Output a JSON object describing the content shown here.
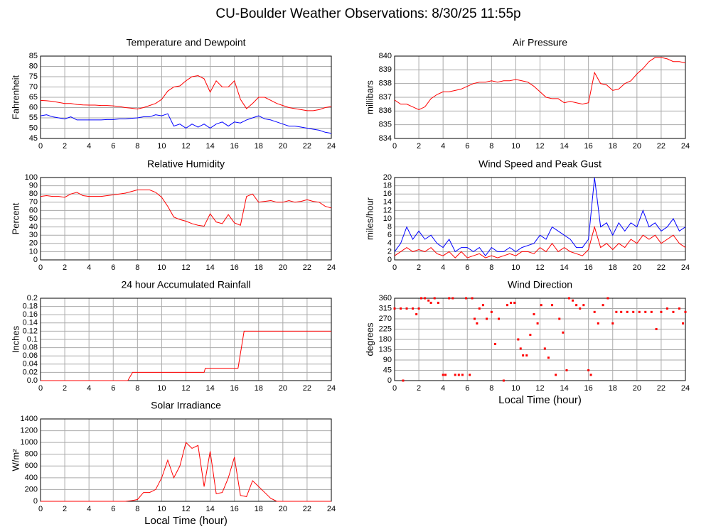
{
  "title": "CU-Boulder Weather Observations: 8/30/25 11:55p",
  "chart_data": [
    {
      "type": "line",
      "title": "Temperature and Dewpoint",
      "ylabel": "Fahrenheit",
      "x": [
        0,
        0.5,
        1,
        1.5,
        2,
        2.5,
        3,
        3.5,
        4,
        4.5,
        5,
        5.5,
        6,
        6.5,
        7,
        7.5,
        8,
        8.5,
        9,
        9.5,
        10,
        10.5,
        11,
        11.5,
        12,
        12.5,
        13,
        13.5,
        14,
        14.5,
        15,
        15.5,
        16,
        16.5,
        17,
        17.5,
        18,
        18.5,
        19,
        19.5,
        20,
        20.5,
        21,
        21.5,
        22,
        22.5,
        23,
        23.5,
        24
      ],
      "series": [
        {
          "color": "#ff0000",
          "values": [
            63.5,
            63.3,
            63,
            62.5,
            62,
            62,
            61.5,
            61.3,
            61.2,
            61.2,
            61,
            61,
            60.8,
            60.5,
            60,
            59.7,
            59.3,
            60,
            61,
            62,
            64,
            68,
            70,
            70.5,
            73,
            75,
            75.5,
            74,
            67.5,
            73,
            70,
            70,
            73,
            64,
            59.5,
            62,
            65,
            65,
            63.5,
            62,
            61,
            60,
            59.5,
            59,
            58.5,
            58.5,
            59,
            60,
            60.5
          ]
        },
        {
          "color": "#0000ff",
          "values": [
            56,
            56.5,
            55.5,
            55,
            54.5,
            55.5,
            54,
            54,
            54,
            54,
            54,
            54.2,
            54.2,
            54.5,
            54.5,
            54.8,
            55,
            55.5,
            55.5,
            56.5,
            56,
            57,
            51,
            52,
            50,
            52,
            50.5,
            52,
            50,
            52,
            53,
            51,
            53,
            52.5,
            54,
            55,
            56,
            54.5,
            54,
            53,
            52,
            51,
            51,
            50.5,
            50,
            49.5,
            49,
            48,
            47.5
          ]
        }
      ],
      "xlim": [
        0,
        24
      ],
      "ylim": [
        45,
        85
      ],
      "xticks": [
        0,
        2,
        4,
        6,
        8,
        10,
        12,
        14,
        16,
        18,
        20,
        22,
        24
      ],
      "yticks": [
        45,
        50,
        55,
        60,
        65,
        70,
        75,
        80,
        85
      ]
    },
    {
      "type": "line",
      "title": "Air Pressure",
      "ylabel": "millibars",
      "x": [
        0,
        0.5,
        1,
        1.5,
        2,
        2.5,
        3,
        3.5,
        4,
        4.5,
        5,
        5.5,
        6,
        6.5,
        7,
        7.5,
        8,
        8.5,
        9,
        9.5,
        10,
        10.5,
        11,
        11.5,
        12,
        12.5,
        13,
        13.5,
        14,
        14.5,
        15,
        15.5,
        16,
        16.5,
        17,
        17.5,
        18,
        18.5,
        19,
        19.5,
        20,
        20.5,
        21,
        21.5,
        22,
        22.5,
        23,
        23.5,
        24
      ],
      "series": [
        {
          "color": "#ff0000",
          "values": [
            836.8,
            836.5,
            836.5,
            836.3,
            836.1,
            836.3,
            836.9,
            837.2,
            837.4,
            837.4,
            837.5,
            837.6,
            837.8,
            838,
            838.1,
            838.1,
            838.2,
            838.1,
            838.2,
            838.2,
            838.3,
            838.2,
            838.1,
            837.8,
            837.4,
            837,
            836.9,
            836.9,
            836.6,
            836.7,
            836.6,
            836.5,
            836.6,
            838.8,
            838,
            837.9,
            837.5,
            837.6,
            838,
            838.2,
            838.7,
            839.1,
            839.6,
            839.9,
            839.9,
            839.8,
            839.6,
            839.6,
            839.5
          ]
        }
      ],
      "xlim": [
        0,
        24
      ],
      "ylim": [
        834,
        840
      ],
      "xticks": [
        0,
        2,
        4,
        6,
        8,
        10,
        12,
        14,
        16,
        18,
        20,
        22,
        24
      ],
      "yticks": [
        834,
        835,
        836,
        837,
        838,
        839,
        840
      ]
    },
    {
      "type": "line",
      "title": "Relative Humidity",
      "ylabel": "Percent",
      "x": [
        0,
        0.5,
        1,
        1.5,
        2,
        2.5,
        3,
        3.5,
        4,
        4.5,
        5,
        5.5,
        6,
        6.5,
        7,
        7.5,
        8,
        8.5,
        9,
        9.5,
        10,
        10.5,
        11,
        11.5,
        12,
        12.5,
        13,
        13.5,
        14,
        14.5,
        15,
        15.5,
        16,
        16.5,
        17,
        17.5,
        18,
        18.5,
        19,
        19.5,
        20,
        20.5,
        21,
        21.5,
        22,
        22.5,
        23,
        23.5,
        24
      ],
      "series": [
        {
          "color": "#ff0000",
          "values": [
            77,
            78,
            77,
            77,
            76,
            80,
            82,
            78,
            77,
            77,
            77,
            78,
            79,
            80,
            81,
            83,
            85,
            85,
            85,
            82,
            76,
            65,
            52,
            49,
            47,
            44,
            42,
            41,
            56,
            46,
            44,
            55,
            45,
            42,
            77,
            80,
            70,
            71,
            72,
            70,
            70,
            72,
            70,
            71,
            73,
            71,
            70,
            65,
            63
          ]
        }
      ],
      "xlim": [
        0,
        24
      ],
      "ylim": [
        0,
        100
      ],
      "xticks": [
        0,
        2,
        4,
        6,
        8,
        10,
        12,
        14,
        16,
        18,
        20,
        22,
        24
      ],
      "yticks": [
        0,
        10,
        20,
        30,
        40,
        50,
        60,
        70,
        80,
        90,
        100
      ]
    },
    {
      "type": "line",
      "title": "Wind Speed and Peak Gust",
      "ylabel": "miles/hour",
      "x": [
        0,
        0.5,
        1,
        1.5,
        2,
        2.5,
        3,
        3.5,
        4,
        4.5,
        5,
        5.5,
        6,
        6.5,
        7,
        7.5,
        8,
        8.5,
        9,
        9.5,
        10,
        10.5,
        11,
        11.5,
        12,
        12.5,
        13,
        13.5,
        14,
        14.5,
        15,
        15.5,
        16,
        16.5,
        17,
        17.5,
        18,
        18.5,
        19,
        19.5,
        20,
        20.5,
        21,
        21.5,
        22,
        22.5,
        23,
        23.5,
        24
      ],
      "series": [
        {
          "color": "#0000ff",
          "values": [
            2,
            4,
            8,
            5,
            7,
            5,
            6,
            4,
            3,
            5,
            2,
            3,
            3,
            2,
            3,
            1,
            3,
            2,
            2,
            3,
            2,
            3,
            3.5,
            4,
            6,
            5,
            8,
            7,
            6,
            5,
            3,
            3,
            5,
            20,
            8,
            9,
            6,
            9,
            7,
            9,
            8,
            12,
            8,
            9,
            7,
            8,
            10,
            7,
            8
          ]
        },
        {
          "color": "#ff0000",
          "values": [
            1,
            2,
            3,
            2,
            2.5,
            2,
            3,
            1.5,
            1,
            2,
            0.5,
            2,
            0.5,
            1,
            1.5,
            0.5,
            1,
            0.5,
            1,
            1.5,
            1,
            2,
            2,
            1.5,
            3,
            2,
            4,
            2,
            3,
            2,
            1.5,
            1,
            2.5,
            8,
            3,
            4,
            2.5,
            4,
            3,
            5,
            4,
            6,
            5,
            6,
            4,
            5,
            6,
            4,
            3
          ]
        }
      ],
      "xlim": [
        0,
        24
      ],
      "ylim": [
        0,
        20
      ],
      "xticks": [
        0,
        2,
        4,
        6,
        8,
        10,
        12,
        14,
        16,
        18,
        20,
        22,
        24
      ],
      "yticks": [
        0,
        2,
        4,
        6,
        8,
        10,
        12,
        14,
        16,
        18,
        20
      ]
    },
    {
      "type": "line",
      "title": "24 hour Accumulated Rainfall",
      "ylabel": "Inches",
      "x": [
        0,
        7.2,
        7.4,
        7.6,
        13.5,
        13.6,
        16.3,
        16.8,
        24
      ],
      "series": [
        {
          "color": "#ff0000",
          "values": [
            0,
            0,
            0.01,
            0.02,
            0.02,
            0.03,
            0.03,
            0.12,
            0.12
          ]
        }
      ],
      "xlim": [
        0,
        24
      ],
      "ylim": [
        0,
        0.2
      ],
      "xticks": [
        0,
        2,
        4,
        6,
        8,
        10,
        12,
        14,
        16,
        18,
        20,
        22,
        24
      ],
      "yticks": [
        {
          "value": 0,
          "label": "0.0"
        },
        0.02,
        0.04,
        0.06,
        0.08,
        0.1,
        0.12,
        0.14,
        0.16,
        0.18,
        0.2
      ]
    },
    {
      "type": "scatter",
      "title": "Wind Direction",
      "ylabel": "degrees",
      "xlabel": "Local Time (hour)",
      "x": [
        0,
        0.5,
        0.7,
        1,
        1.5,
        1.8,
        2,
        2.2,
        2.5,
        2.8,
        3,
        3.3,
        3.6,
        4,
        4.2,
        4.5,
        4.8,
        5,
        5.3,
        5.6,
        5.9,
        6.2,
        6.4,
        6.6,
        6.8,
        7,
        7.3,
        7.6,
        8,
        8.3,
        8.6,
        9,
        9.3,
        9.6,
        9.9,
        10.2,
        10.4,
        10.6,
        10.9,
        11.2,
        11.5,
        11.8,
        12.1,
        12.4,
        12.7,
        13,
        13.3,
        13.6,
        13.9,
        14.2,
        14.4,
        14.7,
        15,
        15.3,
        15.6,
        16,
        16.2,
        16.5,
        16.8,
        17.2,
        17.6,
        18,
        18.3,
        18.7,
        19.2,
        19.7,
        20.2,
        20.7,
        21.2,
        21.6,
        22,
        22.5,
        23,
        23.5,
        23.8,
        24
      ],
      "series": [
        {
          "color": "#ff0000",
          "values": [
            315,
            315,
            0,
            315,
            315,
            290,
            315,
            360,
            360,
            350,
            340,
            360,
            340,
            25,
            25,
            360,
            360,
            25,
            25,
            25,
            360,
            25,
            360,
            270,
            250,
            315,
            330,
            270,
            300,
            160,
            270,
            0,
            330,
            340,
            340,
            180,
            140,
            110,
            110,
            200,
            290,
            250,
            330,
            140,
            100,
            330,
            25,
            270,
            210,
            45,
            360,
            350,
            330,
            315,
            330,
            45,
            25,
            300,
            250,
            330,
            360,
            250,
            300,
            300,
            300,
            300,
            300,
            300,
            300,
            225,
            300,
            315,
            300,
            315,
            250,
            300
          ]
        }
      ],
      "xlim": [
        0,
        24
      ],
      "ylim": [
        0,
        360
      ],
      "xticks": [
        0,
        2,
        4,
        6,
        8,
        10,
        12,
        14,
        16,
        18,
        20,
        22,
        24
      ],
      "yticks": [
        0,
        45,
        90,
        135,
        180,
        225,
        270,
        315,
        360
      ]
    },
    {
      "type": "line",
      "title": "Solar Irradiance",
      "ylabel": "W/m²",
      "xlabel": "Local Time (hour)",
      "x": [
        0,
        0.5,
        1,
        1.5,
        2,
        2.5,
        3,
        3.5,
        4,
        4.5,
        5,
        5.5,
        6,
        6.5,
        7,
        7.5,
        8,
        8.5,
        9,
        9.5,
        10,
        10.5,
        11,
        11.5,
        12,
        12.5,
        13,
        13.5,
        14,
        14.5,
        15,
        15.5,
        16,
        16.5,
        17,
        17.5,
        18,
        18.5,
        19,
        19.5,
        20,
        20.5,
        21,
        21.5,
        22,
        22.5,
        23,
        23.5,
        24
      ],
      "series": [
        {
          "color": "#ff0000",
          "values": [
            0,
            0,
            0,
            0,
            0,
            0,
            0,
            0,
            0,
            0,
            0,
            0,
            0,
            0,
            0,
            10,
            30,
            150,
            150,
            200,
            400,
            700,
            400,
            600,
            1000,
            900,
            950,
            250,
            850,
            130,
            150,
            400,
            750,
            100,
            80,
            350,
            250,
            150,
            50,
            0,
            0,
            0,
            0,
            0,
            0,
            0,
            0,
            0,
            0
          ]
        }
      ],
      "xlim": [
        0,
        24
      ],
      "ylim": [
        0,
        1400
      ],
      "xticks": [
        0,
        2,
        4,
        6,
        8,
        10,
        12,
        14,
        16,
        18,
        20,
        22,
        24
      ],
      "yticks": [
        0,
        200,
        400,
        600,
        800,
        1000,
        1200,
        1400
      ]
    }
  ]
}
